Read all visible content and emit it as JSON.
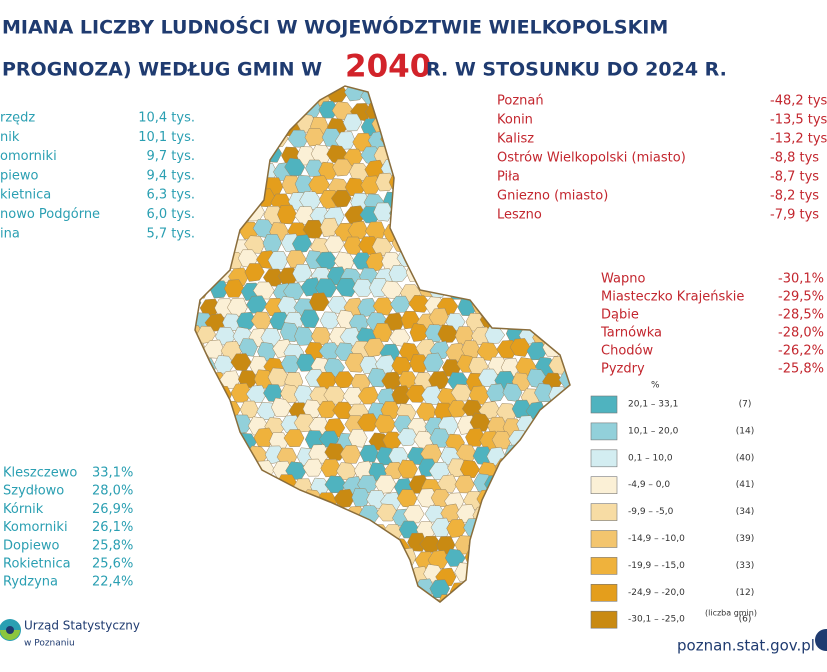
{
  "header": {
    "title_line1": "MIANA  LICZBY LUDNOŚCI  W  WOJEWÓDZTWIE  WIELKOPOLSKIM",
    "title_line2_before": "PROGNOZA) WEDŁUG  GMIN  W",
    "title_year": "2040",
    "title_line2_after": "R.  W  STOSUNKU  DO  2024 R."
  },
  "growth_abs": [
    {
      "name": "rzędz",
      "value": "10,4 tys."
    },
    {
      "name": "nik",
      "value": "10,1 tys."
    },
    {
      "name": "omorniki",
      "value": "9,7 tys."
    },
    {
      "name": "piewo",
      "value": "9,4 tys."
    },
    {
      "name": "kietnica",
      "value": "6,3 tys."
    },
    {
      "name": "nowo Podgórne",
      "value": "6,0 tys."
    },
    {
      "name": "ina",
      "value": "5,7 tys."
    }
  ],
  "decline_abs": [
    {
      "name": "Poznań",
      "value": "-48,2 tys"
    },
    {
      "name": "Konin",
      "value": "-13,5 tys"
    },
    {
      "name": "Kalisz",
      "value": "-13,2 tys"
    },
    {
      "name": "Ostrów Wielkopolski (miasto)",
      "value": "-8,8 tys"
    },
    {
      "name": "Piła",
      "value": "-8,7 tys"
    },
    {
      "name": "Gniezno (miasto)",
      "value": "-8,2 tys"
    },
    {
      "name": "Leszno",
      "value": "-7,9 tys"
    }
  ],
  "decline_pct": [
    {
      "name": "Wapno",
      "value": "-30,1%"
    },
    {
      "name": "Miasteczko Krajeńskie",
      "value": "-29,5%"
    },
    {
      "name": "Dąbie",
      "value": "-28,5%"
    },
    {
      "name": "Tarnówka",
      "value": "-28,0%"
    },
    {
      "name": "Chodów",
      "value": "-26,2%"
    },
    {
      "name": "Pyzdry",
      "value": "-25,8%"
    }
  ],
  "growth_pct": [
    {
      "name": "Kleszczewo",
      "value": "33,1%"
    },
    {
      "name": "Szydłowo",
      "value": "28,0%"
    },
    {
      "name": "Kórnik",
      "value": "26,9%"
    },
    {
      "name": "Komorniki",
      "value": "26,1%"
    },
    {
      "name": "Dopiewo",
      "value": "25,8%"
    },
    {
      "name": "Rokietnica",
      "value": "25,6%"
    },
    {
      "name": "Rydzyna",
      "value": "22,4%"
    }
  ],
  "legend": {
    "unit": "%",
    "note": "(liczba gmin)",
    "items": [
      {
        "range": "20,1 –  33,1",
        "count": "(7)",
        "color": "#4fb3bf"
      },
      {
        "range": "10,1 –  20,0",
        "count": "(14)",
        "color": "#92d0da"
      },
      {
        "range": "0,1 –  10,0",
        "count": "(40)",
        "color": "#d3edf1"
      },
      {
        "range": "-4,9 –    0,0",
        "count": "(41)",
        "color": "#fbf0d6"
      },
      {
        "range": "-9,9 –   -5,0",
        "count": "(34)",
        "color": "#f7dca4"
      },
      {
        "range": "-14,9 – -10,0",
        "count": "(39)",
        "color": "#f3c56e"
      },
      {
        "range": "-19,9 – -15,0",
        "count": "(33)",
        "color": "#efb23c"
      },
      {
        "range": "-24,9 – -20,0",
        "count": "(12)",
        "color": "#e49e1c"
      },
      {
        "range": "-30,1 – -25,0",
        "count": "(6)",
        "color": "#c98a12"
      }
    ]
  },
  "footer": {
    "org_line1": "Urząd Statystyczny",
    "org_line2": "w Poznaniu",
    "url": "poznan.stat.gov.pl"
  }
}
